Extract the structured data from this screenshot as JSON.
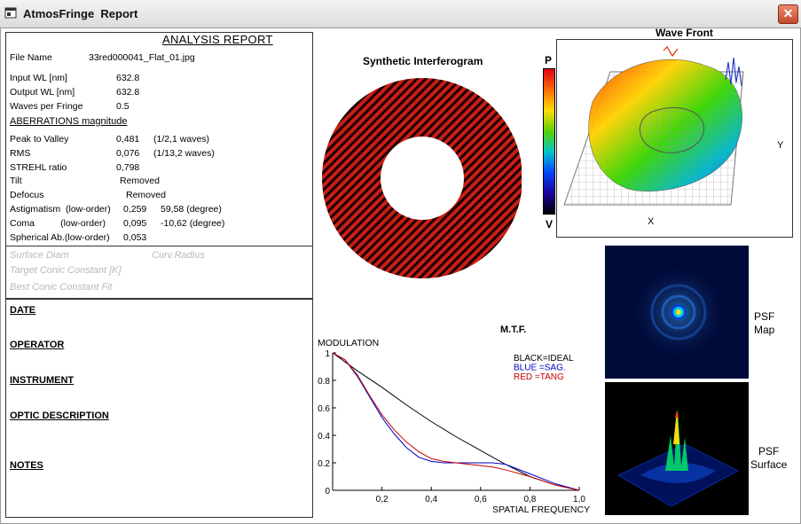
{
  "window": {
    "title": "AtmosFringe  Report",
    "close_glyph": "✕"
  },
  "report": {
    "title": "ANALYSIS  REPORT",
    "fields": [
      {
        "label": "File Name",
        "value": "33red000041_Flat_01.jpg"
      },
      {
        "label": "Input  WL [nm]",
        "value": "632.8"
      },
      {
        "label": "Output WL [nm]",
        "value": "632.8"
      },
      {
        "label": "Waves per Fringe",
        "value": "0.5"
      }
    ],
    "aberrations_header": "ABERRATIONS magnitude",
    "aberrations": [
      {
        "label": "Peak to Valley",
        "value": "0,481",
        "extra": "(1/2,1 waves)"
      },
      {
        "label": "RMS",
        "value": "0,076",
        "extra": "(1/13,2 waves)"
      },
      {
        "label": "STREHL ratio",
        "value": "0,798",
        "extra": ""
      },
      {
        "label": "Tilt",
        "value": "Removed",
        "extra": ""
      },
      {
        "label": "Defocus",
        "value": "Removed",
        "extra": ""
      },
      {
        "label": "Astigmatism  (low-order)",
        "value": "0,259",
        "extra": "59,58  (degree)"
      },
      {
        "label": "Coma          (low-order)",
        "value": "0,095",
        "extra": "-10,62  (degree)"
      },
      {
        "label": "Spherical Ab.(low-order)",
        "value": "0,053",
        "extra": ""
      }
    ],
    "surface_diam": "Surface Diam",
    "curv_radius": "Curv.Radius",
    "target_conic": "Target Conic Constant [K]",
    "best_conic": "Best Conic Constant Fit",
    "sections": [
      "DATE",
      "OPERATOR",
      "INSTRUMENT",
      "OPTIC DESCRIPTION",
      "NOTES"
    ]
  },
  "interferogram": {
    "title": "Synthetic Interferogram",
    "fringe_color": "#c81e14"
  },
  "colorbar": {
    "top_label": "P",
    "bottom_label": "V"
  },
  "wavefront": {
    "title": "Wave Front",
    "x_label": "X",
    "y_label": "Y"
  },
  "psf": {
    "map_label": "PSF\nMap",
    "surface_label": "PSF\nSurface"
  },
  "chart_data": {
    "type": "line",
    "title": "M.T.F.",
    "ylabel": "MODULATION",
    "xlabel": "SPATIAL FREQUENCY",
    "xlim": [
      0,
      1.0
    ],
    "ylim": [
      0,
      1
    ],
    "x_ticks": [
      "0,2",
      "0,4",
      "0,6",
      "0,8",
      "1,0"
    ],
    "y_ticks": [
      "1",
      "0.8",
      "0.6",
      "0.4",
      "0.2",
      "0"
    ],
    "legend": [
      "BLACK=IDEAL",
      "BLUE  =SAG.",
      "RED    =TANG"
    ],
    "legend_colors": [
      "#000000",
      "#0000c8",
      "#c80000"
    ],
    "series": [
      {
        "color": "#000000",
        "x": [
          0,
          0.1,
          0.2,
          0.3,
          0.4,
          0.5,
          0.6,
          0.7,
          0.8,
          0.9,
          1.0
        ],
        "y": [
          1.0,
          0.87,
          0.75,
          0.62,
          0.5,
          0.39,
          0.29,
          0.19,
          0.1,
          0.04,
          0.0
        ]
      },
      {
        "color": "#0000c8",
        "x": [
          0,
          0.05,
          0.1,
          0.15,
          0.2,
          0.25,
          0.3,
          0.35,
          0.4,
          0.45,
          0.5,
          0.55,
          0.6,
          0.65,
          0.7,
          0.8,
          0.9,
          1.0
        ],
        "y": [
          1.0,
          0.95,
          0.83,
          0.68,
          0.53,
          0.41,
          0.31,
          0.24,
          0.21,
          0.2,
          0.2,
          0.2,
          0.2,
          0.2,
          0.19,
          0.12,
          0.05,
          0.0
        ]
      },
      {
        "color": "#c80000",
        "x": [
          0,
          0.05,
          0.1,
          0.15,
          0.2,
          0.25,
          0.3,
          0.35,
          0.4,
          0.45,
          0.5,
          0.55,
          0.6,
          0.65,
          0.7,
          0.8,
          0.9,
          1.0
        ],
        "y": [
          1.0,
          0.95,
          0.84,
          0.69,
          0.55,
          0.44,
          0.35,
          0.28,
          0.23,
          0.21,
          0.2,
          0.19,
          0.18,
          0.17,
          0.15,
          0.1,
          0.04,
          0.0
        ]
      }
    ]
  }
}
